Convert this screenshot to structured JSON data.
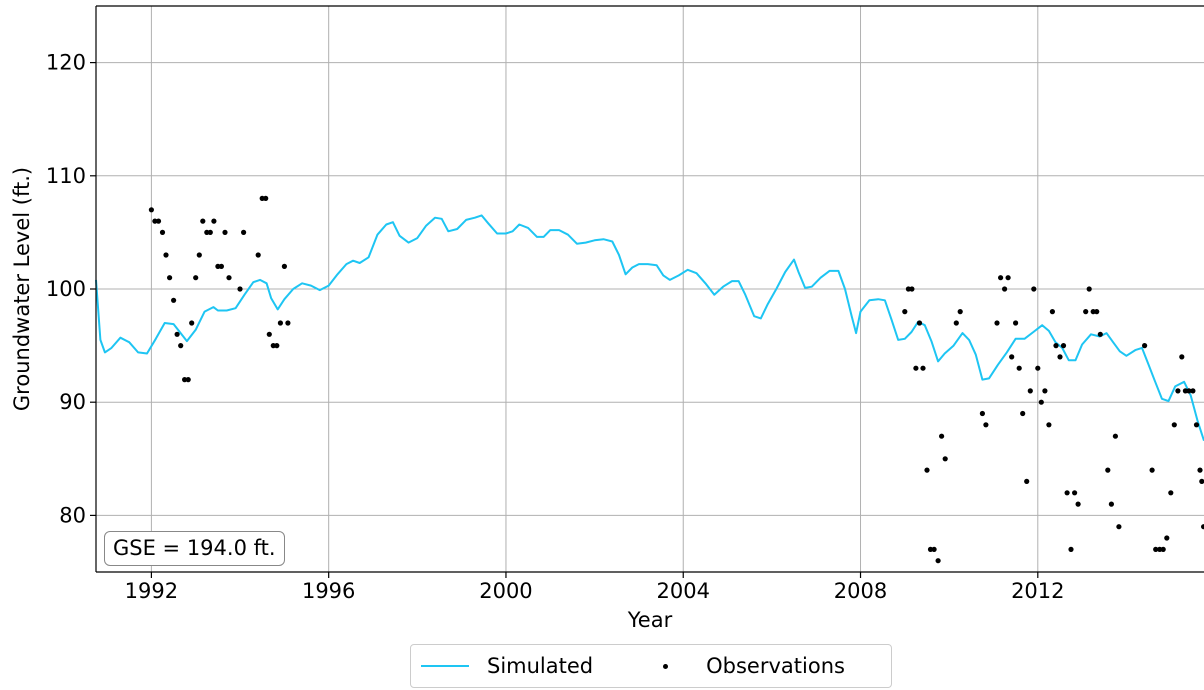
{
  "chart_data": {
    "type": "line",
    "title": "",
    "xlabel": "Year",
    "ylabel": "Groundwater Level (ft.)",
    "xlim": [
      1990.75,
      2015.75
    ],
    "ylim": [
      75,
      125
    ],
    "xticks": [
      1992,
      1996,
      2000,
      2004,
      2008,
      2012
    ],
    "yticks": [
      80,
      90,
      100,
      110,
      120
    ],
    "grid": true,
    "legend_position": "bottom-center",
    "annotation": "GSE = 194.0 ft.",
    "colors": {
      "simulated": "#1ec5f3",
      "observations": "#000000"
    },
    "series": [
      {
        "name": "Simulated",
        "type": "line",
        "points": [
          [
            1990.75,
            100.8
          ],
          [
            1990.85,
            95.5
          ],
          [
            1990.95,
            94.4
          ],
          [
            1991.1,
            94.8
          ],
          [
            1991.3,
            95.7
          ],
          [
            1991.5,
            95.3
          ],
          [
            1991.7,
            94.4
          ],
          [
            1991.9,
            94.3
          ],
          [
            1992.1,
            95.6
          ],
          [
            1992.3,
            97.0
          ],
          [
            1992.5,
            96.9
          ],
          [
            1992.7,
            95.9
          ],
          [
            1992.8,
            95.4
          ],
          [
            1993.0,
            96.4
          ],
          [
            1993.2,
            98.0
          ],
          [
            1993.4,
            98.4
          ],
          [
            1993.5,
            98.1
          ],
          [
            1993.7,
            98.1
          ],
          [
            1993.9,
            98.3
          ],
          [
            1994.1,
            99.5
          ],
          [
            1994.3,
            100.6
          ],
          [
            1994.45,
            100.8
          ],
          [
            1994.6,
            100.5
          ],
          [
            1994.7,
            99.2
          ],
          [
            1994.85,
            98.2
          ],
          [
            1995.0,
            99.1
          ],
          [
            1995.2,
            100.0
          ],
          [
            1995.4,
            100.5
          ],
          [
            1995.6,
            100.3
          ],
          [
            1995.8,
            99.9
          ],
          [
            1996.0,
            100.3
          ],
          [
            1996.2,
            101.3
          ],
          [
            1996.4,
            102.2
          ],
          [
            1996.55,
            102.5
          ],
          [
            1996.7,
            102.3
          ],
          [
            1996.9,
            102.8
          ],
          [
            1997.1,
            104.8
          ],
          [
            1997.3,
            105.7
          ],
          [
            1997.45,
            105.9
          ],
          [
            1997.6,
            104.7
          ],
          [
            1997.8,
            104.1
          ],
          [
            1998.0,
            104.5
          ],
          [
            1998.2,
            105.6
          ],
          [
            1998.4,
            106.3
          ],
          [
            1998.55,
            106.2
          ],
          [
            1998.7,
            105.1
          ],
          [
            1998.9,
            105.3
          ],
          [
            1999.1,
            106.1
          ],
          [
            1999.3,
            106.3
          ],
          [
            1999.45,
            106.5
          ],
          [
            1999.6,
            105.8
          ],
          [
            1999.8,
            104.9
          ],
          [
            2000.0,
            104.9
          ],
          [
            2000.15,
            105.1
          ],
          [
            2000.3,
            105.7
          ],
          [
            2000.5,
            105.4
          ],
          [
            2000.7,
            104.6
          ],
          [
            2000.85,
            104.6
          ],
          [
            2001.0,
            105.2
          ],
          [
            2001.2,
            105.2
          ],
          [
            2001.4,
            104.8
          ],
          [
            2001.6,
            104.0
          ],
          [
            2001.8,
            104.1
          ],
          [
            2002.0,
            104.3
          ],
          [
            2002.2,
            104.4
          ],
          [
            2002.4,
            104.2
          ],
          [
            2002.55,
            103.0
          ],
          [
            2002.7,
            101.3
          ],
          [
            2002.85,
            101.9
          ],
          [
            2003.0,
            102.2
          ],
          [
            2003.2,
            102.2
          ],
          [
            2003.4,
            102.1
          ],
          [
            2003.55,
            101.2
          ],
          [
            2003.7,
            100.8
          ],
          [
            2003.9,
            101.2
          ],
          [
            2004.1,
            101.7
          ],
          [
            2004.3,
            101.4
          ],
          [
            2004.5,
            100.5
          ],
          [
            2004.7,
            99.5
          ],
          [
            2004.9,
            100.2
          ],
          [
            2005.1,
            100.7
          ],
          [
            2005.25,
            100.7
          ],
          [
            2005.4,
            99.5
          ],
          [
            2005.6,
            97.6
          ],
          [
            2005.75,
            97.4
          ],
          [
            2005.9,
            98.6
          ],
          [
            2006.1,
            100.0
          ],
          [
            2006.3,
            101.5
          ],
          [
            2006.5,
            102.6
          ],
          [
            2006.6,
            101.5
          ],
          [
            2006.75,
            100.1
          ],
          [
            2006.9,
            100.2
          ],
          [
            2007.1,
            101.0
          ],
          [
            2007.3,
            101.6
          ],
          [
            2007.5,
            101.6
          ],
          [
            2007.65,
            100.0
          ],
          [
            2007.8,
            97.6
          ],
          [
            2007.9,
            96.1
          ],
          [
            2008.0,
            98.0
          ],
          [
            2008.2,
            99.0
          ],
          [
            2008.4,
            99.1
          ],
          [
            2008.55,
            99.0
          ],
          [
            2008.7,
            97.3
          ],
          [
            2008.85,
            95.5
          ],
          [
            2009.0,
            95.6
          ],
          [
            2009.15,
            96.2
          ],
          [
            2009.3,
            97.1
          ],
          [
            2009.45,
            96.8
          ],
          [
            2009.6,
            95.4
          ],
          [
            2009.75,
            93.6
          ],
          [
            2009.9,
            94.3
          ],
          [
            2010.1,
            95.0
          ],
          [
            2010.3,
            96.1
          ],
          [
            2010.45,
            95.5
          ],
          [
            2010.6,
            94.2
          ],
          [
            2010.75,
            92.0
          ],
          [
            2010.9,
            92.1
          ],
          [
            2011.1,
            93.3
          ],
          [
            2011.3,
            94.4
          ],
          [
            2011.5,
            95.6
          ],
          [
            2011.7,
            95.6
          ],
          [
            2011.9,
            96.2
          ],
          [
            2012.1,
            96.8
          ],
          [
            2012.25,
            96.3
          ],
          [
            2012.4,
            95.3
          ],
          [
            2012.55,
            94.8
          ],
          [
            2012.7,
            93.7
          ],
          [
            2012.85,
            93.7
          ],
          [
            2013.0,
            95.1
          ],
          [
            2013.2,
            96.0
          ],
          [
            2013.4,
            95.8
          ],
          [
            2013.55,
            96.1
          ],
          [
            2013.7,
            95.3
          ],
          [
            2013.85,
            94.5
          ],
          [
            2014.0,
            94.1
          ],
          [
            2014.2,
            94.6
          ],
          [
            2014.35,
            94.8
          ],
          [
            2014.5,
            93.3
          ],
          [
            2014.65,
            91.8
          ],
          [
            2014.8,
            90.3
          ],
          [
            2014.95,
            90.1
          ],
          [
            2015.1,
            91.4
          ],
          [
            2015.3,
            91.8
          ],
          [
            2015.45,
            90.6
          ],
          [
            2015.6,
            88.4
          ],
          [
            2015.75,
            86.6
          ]
        ]
      },
      {
        "name": "Observations",
        "type": "scatter",
        "points": [
          [
            1992.0,
            107
          ],
          [
            1992.08,
            106
          ],
          [
            1992.16,
            106
          ],
          [
            1992.25,
            105
          ],
          [
            1992.33,
            103
          ],
          [
            1992.41,
            101
          ],
          [
            1992.5,
            99
          ],
          [
            1992.58,
            96
          ],
          [
            1992.66,
            95
          ],
          [
            1992.75,
            92
          ],
          [
            1992.83,
            92
          ],
          [
            1992.91,
            97
          ],
          [
            1993.0,
            101
          ],
          [
            1993.08,
            103
          ],
          [
            1993.16,
            106
          ],
          [
            1993.25,
            105
          ],
          [
            1993.33,
            105
          ],
          [
            1993.41,
            106
          ],
          [
            1993.5,
            102
          ],
          [
            1993.58,
            102
          ],
          [
            1993.66,
            105
          ],
          [
            1993.75,
            101
          ],
          [
            1994.0,
            100
          ],
          [
            1994.08,
            105
          ],
          [
            1994.41,
            103
          ],
          [
            1994.5,
            108
          ],
          [
            1994.58,
            108
          ],
          [
            1994.66,
            96
          ],
          [
            1994.75,
            95
          ],
          [
            1994.83,
            95
          ],
          [
            1994.91,
            97
          ],
          [
            1995.0,
            102
          ],
          [
            1995.08,
            97
          ],
          [
            2009.0,
            98
          ],
          [
            2009.08,
            100
          ],
          [
            2009.16,
            100
          ],
          [
            2009.25,
            93
          ],
          [
            2009.33,
            97
          ],
          [
            2009.41,
            93
          ],
          [
            2009.5,
            84
          ],
          [
            2009.58,
            77
          ],
          [
            2009.66,
            77
          ],
          [
            2009.75,
            76
          ],
          [
            2009.83,
            87
          ],
          [
            2009.91,
            85
          ],
          [
            2010.16,
            97
          ],
          [
            2010.25,
            98
          ],
          [
            2010.75,
            89
          ],
          [
            2010.83,
            88
          ],
          [
            2011.08,
            97
          ],
          [
            2011.16,
            101
          ],
          [
            2011.25,
            100
          ],
          [
            2011.33,
            101
          ],
          [
            2011.41,
            94
          ],
          [
            2011.5,
            97
          ],
          [
            2011.58,
            93
          ],
          [
            2011.66,
            89
          ],
          [
            2011.75,
            83
          ],
          [
            2011.83,
            91
          ],
          [
            2011.91,
            100
          ],
          [
            2012.0,
            93
          ],
          [
            2012.08,
            90
          ],
          [
            2012.16,
            91
          ],
          [
            2012.25,
            88
          ],
          [
            2012.33,
            98
          ],
          [
            2012.41,
            95
          ],
          [
            2012.5,
            94
          ],
          [
            2012.58,
            95
          ],
          [
            2012.66,
            82
          ],
          [
            2012.75,
            77
          ],
          [
            2012.83,
            82
          ],
          [
            2012.91,
            81
          ],
          [
            2013.08,
            98
          ],
          [
            2013.16,
            100
          ],
          [
            2013.25,
            98
          ],
          [
            2013.33,
            98
          ],
          [
            2013.41,
            96
          ],
          [
            2013.58,
            84
          ],
          [
            2013.66,
            81
          ],
          [
            2013.75,
            87
          ],
          [
            2013.83,
            79
          ],
          [
            2014.41,
            95
          ],
          [
            2014.58,
            84
          ],
          [
            2014.66,
            77
          ],
          [
            2014.75,
            77
          ],
          [
            2014.83,
            77
          ],
          [
            2014.91,
            78
          ],
          [
            2015.0,
            82
          ],
          [
            2015.08,
            88
          ],
          [
            2015.16,
            91
          ],
          [
            2015.25,
            94
          ],
          [
            2015.33,
            91
          ],
          [
            2015.41,
            91
          ],
          [
            2015.5,
            91
          ],
          [
            2015.58,
            88
          ],
          [
            2015.66,
            84
          ],
          [
            2015.7,
            83
          ],
          [
            2015.74,
            79
          ]
        ]
      }
    ]
  }
}
